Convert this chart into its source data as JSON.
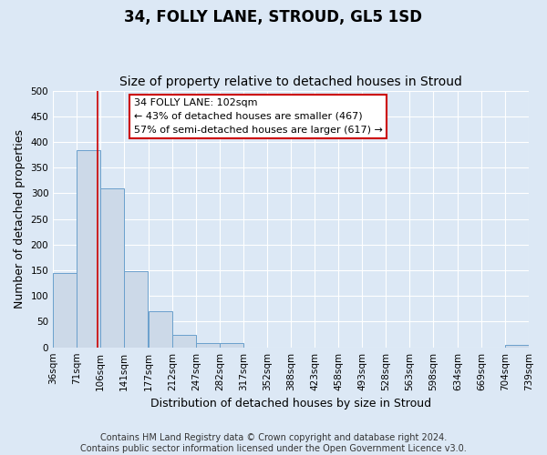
{
  "title": "34, FOLLY LANE, STROUD, GL5 1SD",
  "subtitle": "Size of property relative to detached houses in Stroud",
  "xlabel": "Distribution of detached houses by size in Stroud",
  "ylabel": "Number of detached properties",
  "bin_edges": [
    36,
    71,
    106,
    141,
    177,
    212,
    247,
    282,
    317,
    352,
    388,
    423,
    458,
    493,
    528,
    563,
    598,
    634,
    669,
    704,
    739
  ],
  "bin_heights": [
    144,
    384,
    309,
    149,
    70,
    24,
    9,
    8,
    0,
    0,
    0,
    0,
    0,
    0,
    0,
    0,
    0,
    0,
    0,
    5
  ],
  "bar_color": "#ccd9e8",
  "bar_edge_color": "#6aa0cc",
  "property_line_x": 102,
  "property_line_color": "#cc0000",
  "annotation_text": "34 FOLLY LANE: 102sqm\n← 43% of detached houses are smaller (467)\n57% of semi-detached houses are larger (617) →",
  "annotation_box_facecolor": "#ffffff",
  "annotation_box_edgecolor": "#cc0000",
  "ylim": [
    0,
    500
  ],
  "tick_labels": [
    "36sqm",
    "71sqm",
    "106sqm",
    "141sqm",
    "177sqm",
    "212sqm",
    "247sqm",
    "282sqm",
    "317sqm",
    "352sqm",
    "388sqm",
    "423sqm",
    "458sqm",
    "493sqm",
    "528sqm",
    "563sqm",
    "598sqm",
    "634sqm",
    "669sqm",
    "704sqm",
    "739sqm"
  ],
  "footer_line1": "Contains HM Land Registry data © Crown copyright and database right 2024.",
  "footer_line2": "Contains public sector information licensed under the Open Government Licence v3.0.",
  "background_color": "#dce8f5",
  "plot_background_color": "#dce8f5",
  "grid_color": "#ffffff",
  "title_fontsize": 12,
  "subtitle_fontsize": 10,
  "axis_label_fontsize": 9,
  "tick_fontsize": 7.5,
  "annotation_fontsize": 8,
  "footer_fontsize": 7
}
